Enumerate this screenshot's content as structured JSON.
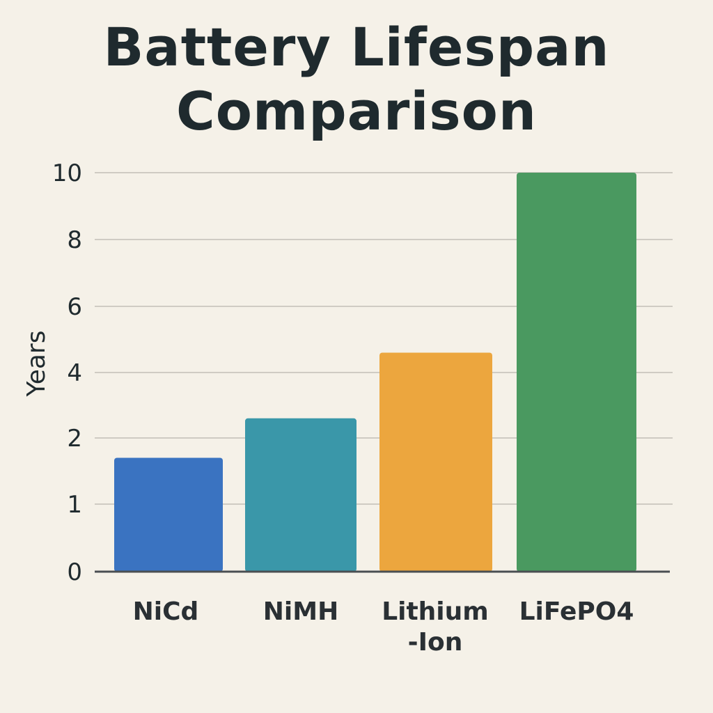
{
  "chart_data": {
    "type": "bar",
    "title_lines": [
      "Battery Lifespan",
      "Comparison"
    ],
    "xlabel": "",
    "ylabel": "Years",
    "categories": [
      {
        "name": "NiCd",
        "label_lines": [
          "NiCd"
        ]
      },
      {
        "name": "NiMH",
        "label_lines": [
          "NiMH"
        ]
      },
      {
        "name": "Lithium-Ion",
        "label_lines": [
          "Lithium",
          "-Ion"
        ]
      },
      {
        "name": "LiFePO4",
        "label_lines": [
          "LiFePO4"
        ]
      }
    ],
    "values": [
      1.7,
      2.6,
      4.6,
      10.0
    ],
    "colors": [
      "#3a73c1",
      "#3a97a9",
      "#eca63e",
      "#4a9960"
    ],
    "y_ticks": [
      0,
      1,
      2,
      4,
      6,
      8,
      10
    ],
    "ylim": [
      0,
      10
    ],
    "grid": true,
    "legend": "none"
  }
}
